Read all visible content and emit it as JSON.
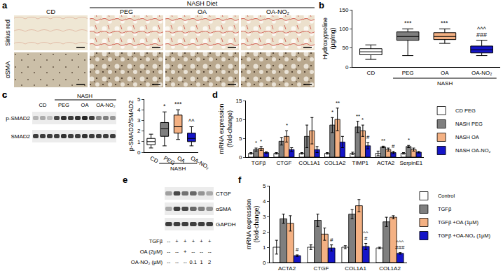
{
  "chart_data": [
    {
      "panel": "b",
      "type": "box",
      "categories": [
        "CD",
        "PEG",
        "OA",
        "OA-NO₂"
      ],
      "stats": [
        {
          "q1": 32,
          "median": 40,
          "q3": 48,
          "lowerfence": 20,
          "upperfence": 58
        },
        {
          "q1": 70,
          "median": 80,
          "q3": 92,
          "lowerfence": 30,
          "upperfence": 100
        },
        {
          "q1": 72,
          "median": 80,
          "q3": 90,
          "lowerfence": 62,
          "upperfence": 100
        },
        {
          "q1": 37,
          "median": 45,
          "q3": 55,
          "lowerfence": 30,
          "upperfence": 70
        }
      ],
      "colors": [
        "#ffffff",
        "#7f7f7f",
        "#f4b183",
        "#1515c8"
      ],
      "y_label": "Hydroxyproline\n(µg/mg)",
      "ylim": [
        0,
        150
      ],
      "yticks": [
        0,
        50,
        100,
        150
      ],
      "grid": false,
      "group_labels": [
        {
          "text": "NASH",
          "from": "PEG",
          "to": "OA-NO₂"
        }
      ],
      "annotations": [
        {
          "category": "PEG",
          "text": "***"
        },
        {
          "category": "OA",
          "text": "***"
        },
        {
          "category": "OA-NO₂",
          "text": "###"
        },
        {
          "category": "OA-NO₂",
          "text": "^^^"
        }
      ]
    },
    {
      "panel": "c",
      "type": "box",
      "categories": [
        "CD",
        "PEG",
        "OA",
        "OA-NO₂"
      ],
      "stats": [
        {
          "q1": 0.7,
          "median": 1.0,
          "q3": 1.3,
          "lowerfence": 0.4,
          "upperfence": 1.7
        },
        {
          "q1": 1.5,
          "median": 2.2,
          "q3": 2.8,
          "lowerfence": 0.6,
          "upperfence": 3.8
        },
        {
          "q1": 1.8,
          "median": 2.4,
          "q3": 3.5,
          "lowerfence": 1.2,
          "upperfence": 4.0
        },
        {
          "q1": 1.0,
          "median": 1.3,
          "q3": 1.8,
          "lowerfence": 0.6,
          "upperfence": 2.4
        }
      ],
      "colors": [
        "#ffffff",
        "#7f7f7f",
        "#f4b183",
        "#1515c8"
      ],
      "y_label": "p-SMAD2/SMAD2",
      "ylim": [
        0,
        5
      ],
      "yticks": [
        0,
        1,
        2,
        3,
        4,
        5
      ],
      "grid": false,
      "group_labels": [
        {
          "text": "NASH",
          "from": "PEG",
          "to": "OA-NO₂"
        }
      ],
      "annotations": [
        {
          "category": "PEG",
          "text": "*"
        },
        {
          "category": "OA",
          "text": "***"
        },
        {
          "category": "OA-NO₂",
          "text": "^^"
        }
      ]
    },
    {
      "panel": "d",
      "type": "bar",
      "categories": [
        "TGFβ",
        "CTGF",
        "COL1A1",
        "COL1A2",
        "TIMP1",
        "ACTA2",
        "SerpinE1"
      ],
      "series": [
        {
          "name": "CD PEG",
          "color": "#ffffff",
          "values": [
            1,
            1,
            1,
            1,
            1,
            1,
            1
          ],
          "errors": [
            0.2,
            0.2,
            0.2,
            0.2,
            0.3,
            0.6,
            0.2
          ]
        },
        {
          "name": "NASH PEG",
          "color": "#7f7f7f",
          "values": [
            2.0,
            4.2,
            5.5,
            8.5,
            8.0,
            2.7,
            2.8
          ],
          "errors": [
            0.4,
            1.0,
            3.0,
            2.0,
            1.5,
            0.2,
            0.3
          ]
        },
        {
          "name": "NASH OA",
          "color": "#f4b183",
          "values": [
            2.3,
            5.5,
            7.0,
            10.0,
            7.0,
            2.0,
            2.0
          ],
          "errors": [
            0.5,
            1.5,
            3.5,
            3.0,
            1.5,
            0.4,
            0.4
          ]
        },
        {
          "name": "NASH OA-NO₂",
          "color": "#1515c8",
          "values": [
            1.2,
            2.0,
            2.0,
            4.0,
            3.0,
            1.2,
            1.3
          ],
          "errors": [
            0.2,
            0.5,
            0.8,
            1.5,
            0.8,
            0.3,
            0.2
          ]
        }
      ],
      "y_label": "mRNA expression\n(fold-change)",
      "ylim": [
        0,
        15
      ],
      "yticks": [
        0,
        5,
        10,
        15
      ],
      "grid": false,
      "legend": "right",
      "annotations": [
        {
          "category": "TGFβ",
          "series": "NASH PEG",
          "text": "*"
        },
        {
          "category": "TGFβ",
          "series": "NASH OA",
          "text": "*"
        },
        {
          "category": "CTGF",
          "series": "NASH OA",
          "text": "*"
        },
        {
          "category": "COL1A2",
          "series": "NASH PEG",
          "text": "*"
        },
        {
          "category": "COL1A2",
          "series": "NASH OA",
          "text": "**"
        },
        {
          "category": "TIMP1",
          "series": "NASH PEG",
          "text": "**"
        },
        {
          "category": "TIMP1",
          "series": "NASH OA",
          "text": "*"
        },
        {
          "category": "TIMP1",
          "series": "NASH OA-NO₂",
          "text": "#"
        },
        {
          "category": "ACTA2",
          "series": "NASH PEG",
          "text": "**"
        },
        {
          "category": "ACTA2",
          "series": "NASH OA-NO₂",
          "text": "#"
        },
        {
          "category": "SerpinE1",
          "series": "NASH PEG",
          "text": "*"
        }
      ]
    },
    {
      "panel": "f",
      "type": "bar",
      "categories": [
        "ACTA2",
        "CTGF",
        "COL1A1",
        "COL1A2"
      ],
      "series": [
        {
          "name": "Control",
          "color": "#ffffff",
          "values": [
            1.0,
            1.0,
            1.0,
            0.95
          ],
          "errors": [
            0.45,
            0.15,
            0.1,
            0.05
          ]
        },
        {
          "name": "TGFβ",
          "color": "#7f7f7f",
          "values": [
            2.85,
            2.75,
            3.15,
            2.65
          ],
          "errors": [
            0.3,
            0.4,
            0.3,
            0.3
          ]
        },
        {
          "name": "TGFβ +OA (1µM)",
          "color": "#f4b183",
          "values": [
            2.55,
            1.85,
            3.7,
            2.95
          ],
          "errors": [
            0.5,
            0.4,
            0.4,
            0.1
          ]
        },
        {
          "name": "TGFβ +OA-NO₂ (1µM)",
          "color": "#1515c8",
          "values": [
            0.45,
            0.95,
            1.05,
            0.6
          ],
          "errors": [
            0.05,
            0.2,
            0.2,
            0.05
          ]
        }
      ],
      "y_label": "mRNA expression\n(fold-change)",
      "ylim": [
        0,
        5
      ],
      "yticks": [
        0,
        1,
        2,
        3,
        4,
        5
      ],
      "grid": false,
      "legend": "right",
      "annotations": [
        {
          "category": "ACTA2",
          "series": "TGFβ +OA-NO₂ (1µM)",
          "text": "#"
        },
        {
          "category": "CTGF",
          "series": "TGFβ +OA-NO₂ (1µM)",
          "text": "#"
        },
        {
          "category": "COL1A1",
          "series": "TGFβ +OA-NO₂ (1µM)",
          "text": "#"
        },
        {
          "category": "COL1A1",
          "series": "TGFβ +OA-NO₂ (1µM)",
          "text": "^^"
        },
        {
          "category": "COL1A2",
          "series": "TGFβ +OA-NO₂ (1µM)",
          "text": "###"
        },
        {
          "category": "COL1A2",
          "series": "TGFβ +OA-NO₂ (1µM)",
          "text": "^^^"
        }
      ]
    }
  ],
  "images": {
    "a": {
      "label": "a",
      "group": "NASH Diet",
      "columns": [
        "CD",
        "PEG",
        "OA",
        "OA-NO₂"
      ],
      "rows": [
        "Sirius red",
        "αSMA"
      ]
    },
    "c": {
      "label": "c",
      "group": "NASH",
      "columns": [
        "CD",
        "PEG",
        "OA",
        "OA-NO₂"
      ],
      "rows": [
        "p-SMAD2",
        "SMAD2"
      ]
    },
    "e": {
      "label": "e",
      "rows": [
        "CTGF",
        "αSMA",
        "GAPDH"
      ],
      "conditions": [
        {
          "name": "TGFβ",
          "values": [
            "--",
            "+",
            "+",
            "+",
            "+",
            "+"
          ]
        },
        {
          "name": "OA (2µM)",
          "values": [
            "--",
            "--",
            "+",
            "--",
            "--",
            "--"
          ]
        },
        {
          "name": "OA-NO₂ (µM)",
          "values": [
            "--",
            "--",
            "--",
            "0.1",
            "1",
            "2"
          ]
        }
      ]
    }
  }
}
